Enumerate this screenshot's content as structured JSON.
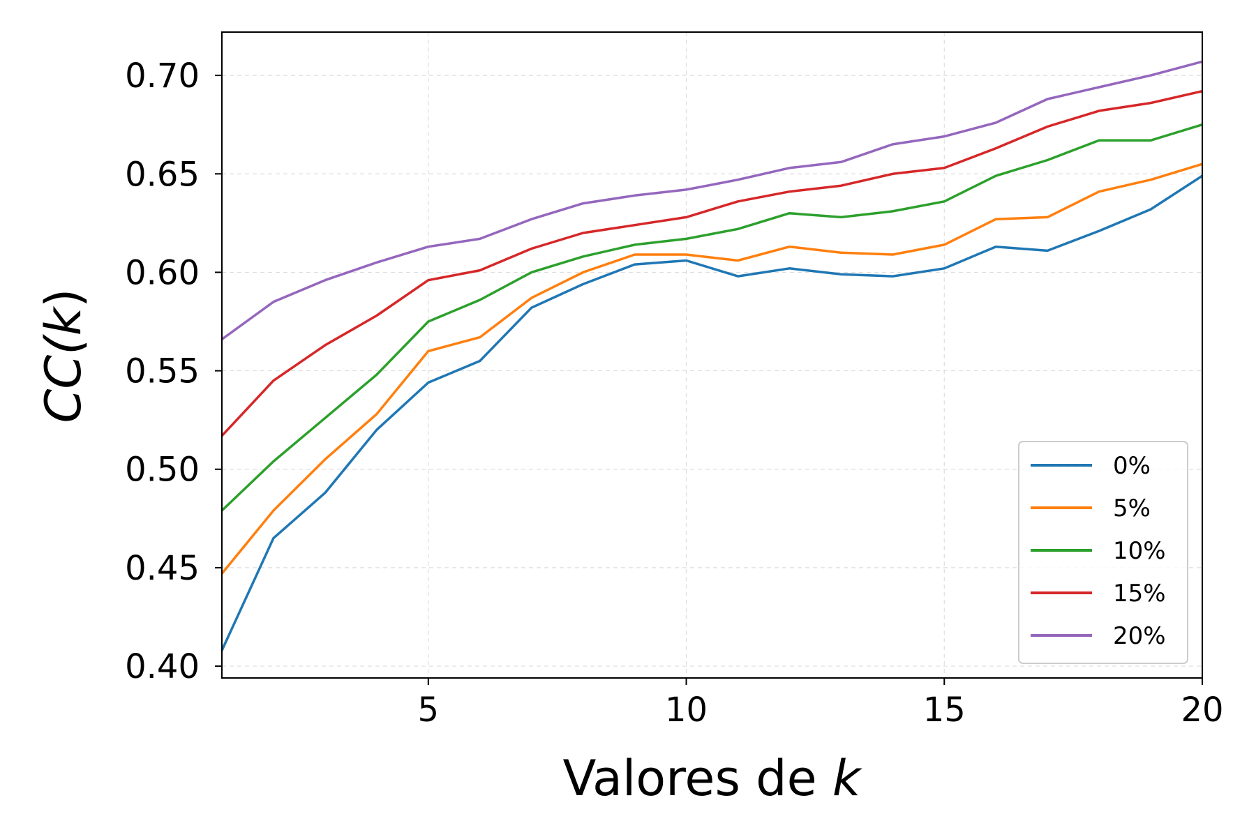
{
  "chart_data": {
    "type": "line",
    "title": "",
    "xlabel": "Valores de ",
    "xlabel_italic": "k",
    "ylabel_main": "CC(",
    "ylabel_italic": "k",
    "ylabel_close": ")",
    "xlim": [
      1,
      20
    ],
    "ylim": [
      0.394,
      0.722
    ],
    "xticks": [
      5,
      10,
      15,
      20
    ],
    "xtick_labels": [
      "5",
      "10",
      "15",
      "20"
    ],
    "yticks": [
      0.4,
      0.45,
      0.5,
      0.55,
      0.6,
      0.65,
      0.7
    ],
    "ytick_labels": [
      "0.40",
      "0.45",
      "0.50",
      "0.55",
      "0.60",
      "0.65",
      "0.70"
    ],
    "grid": true,
    "legend_position": "lower-right",
    "x": [
      1,
      2,
      3,
      4,
      5,
      6,
      7,
      8,
      9,
      10,
      11,
      12,
      13,
      14,
      15,
      16,
      17,
      18,
      19,
      20
    ],
    "series": [
      {
        "name": "0%",
        "color": "#1f77b4",
        "values": [
          0.408,
          0.465,
          0.488,
          0.52,
          0.544,
          0.555,
          0.582,
          0.594,
          0.604,
          0.606,
          0.598,
          0.602,
          0.599,
          0.598,
          0.602,
          0.613,
          0.611,
          0.621,
          0.632,
          0.649
        ]
      },
      {
        "name": "5%",
        "color": "#ff7f0e",
        "values": [
          0.447,
          0.479,
          0.505,
          0.528,
          0.56,
          0.567,
          0.587,
          0.6,
          0.609,
          0.609,
          0.606,
          0.613,
          0.61,
          0.609,
          0.614,
          0.627,
          0.628,
          0.641,
          0.647,
          0.655
        ]
      },
      {
        "name": "10%",
        "color": "#2ca02c",
        "values": [
          0.479,
          0.504,
          0.526,
          0.548,
          0.575,
          0.586,
          0.6,
          0.608,
          0.614,
          0.617,
          0.622,
          0.63,
          0.628,
          0.631,
          0.636,
          0.649,
          0.657,
          0.667,
          0.667,
          0.675
        ]
      },
      {
        "name": "15%",
        "color": "#d62728",
        "values": [
          0.517,
          0.545,
          0.563,
          0.578,
          0.596,
          0.601,
          0.612,
          0.62,
          0.624,
          0.628,
          0.636,
          0.641,
          0.644,
          0.65,
          0.653,
          0.663,
          0.674,
          0.682,
          0.686,
          0.692
        ]
      },
      {
        "name": "20%",
        "color": "#9467bd",
        "values": [
          0.566,
          0.585,
          0.596,
          0.605,
          0.613,
          0.617,
          0.627,
          0.635,
          0.639,
          0.642,
          0.647,
          0.653,
          0.656,
          0.665,
          0.669,
          0.676,
          0.688,
          0.694,
          0.7,
          0.707
        ]
      }
    ]
  }
}
